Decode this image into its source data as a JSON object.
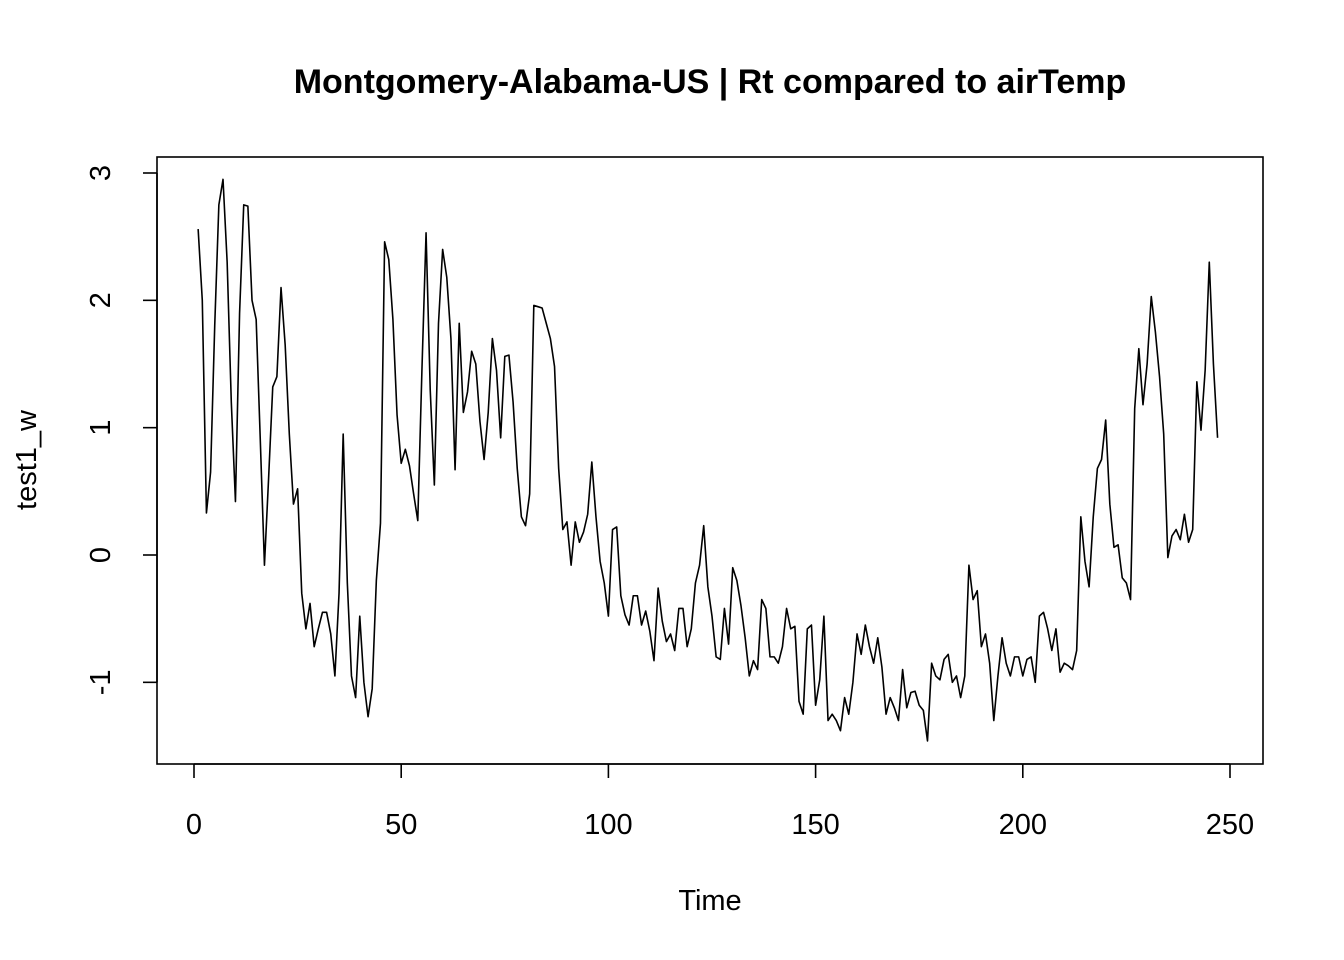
{
  "chart_data": {
    "type": "line",
    "title": "Montgomery-Alabama-US | Rt compared to airTemp",
    "xlabel": "Time",
    "ylabel": "test1_w",
    "xlim": [
      0,
      250
    ],
    "ylim": [
      -1.6,
      3.1
    ],
    "x_ticks": [
      0,
      50,
      100,
      150,
      200,
      250
    ],
    "y_ticks": [
      -1,
      0,
      1,
      2,
      3
    ],
    "grid": false,
    "legend": "none",
    "line_color": "#000000",
    "series": [
      {
        "x_start": 1,
        "x_step": 1,
        "values": [
          2.56,
          2.0,
          0.33,
          0.65,
          1.8,
          2.75,
          2.95,
          2.3,
          1.2,
          0.42,
          1.9,
          2.75,
          2.74,
          2.0,
          1.85,
          0.9,
          -0.08,
          0.6,
          1.32,
          1.4,
          2.1,
          1.65,
          0.95,
          0.4,
          0.52,
          -0.3,
          -0.58,
          -0.38,
          -0.72,
          -0.58,
          -0.45,
          -0.45,
          -0.62,
          -0.95,
          -0.3,
          0.95,
          -0.22,
          -0.95,
          -1.12,
          -0.48,
          -1.0,
          -1.27,
          -1.05,
          -0.2,
          0.25,
          2.46,
          2.32,
          1.85,
          1.1,
          0.72,
          0.83,
          0.7,
          0.48,
          0.27,
          1.45,
          2.53,
          1.3,
          0.55,
          1.82,
          2.4,
          2.18,
          1.7,
          0.67,
          1.82,
          1.12,
          1.28,
          1.6,
          1.5,
          1.05,
          0.75,
          1.12,
          1.7,
          1.45,
          0.92,
          1.56,
          1.57,
          1.2,
          0.68,
          0.3,
          0.23,
          0.48,
          1.96,
          1.95,
          1.94,
          1.82,
          1.7,
          1.48,
          0.68,
          0.2,
          0.26,
          -0.08,
          0.26,
          0.1,
          0.18,
          0.32,
          0.73,
          0.3,
          -0.05,
          -0.22,
          -0.48,
          0.2,
          0.22,
          -0.32,
          -0.47,
          -0.55,
          -0.32,
          -0.32,
          -0.55,
          -0.44,
          -0.6,
          -0.83,
          -0.26,
          -0.52,
          -0.68,
          -0.62,
          -0.75,
          -0.42,
          -0.42,
          -0.72,
          -0.58,
          -0.22,
          -0.08,
          0.23,
          -0.25,
          -0.48,
          -0.8,
          -0.82,
          -0.42,
          -0.7,
          -0.1,
          -0.2,
          -0.4,
          -0.65,
          -0.95,
          -0.83,
          -0.9,
          -0.35,
          -0.42,
          -0.8,
          -0.8,
          -0.85,
          -0.72,
          -0.42,
          -0.58,
          -0.56,
          -1.15,
          -1.25,
          -0.58,
          -0.55,
          -1.18,
          -0.98,
          -0.48,
          -1.3,
          -1.25,
          -1.3,
          -1.38,
          -1.12,
          -1.25,
          -1.0,
          -0.62,
          -0.78,
          -0.55,
          -0.72,
          -0.85,
          -0.65,
          -0.88,
          -1.25,
          -1.12,
          -1.2,
          -1.3,
          -0.9,
          -1.2,
          -1.08,
          -1.07,
          -1.18,
          -1.22,
          -1.46,
          -0.85,
          -0.95,
          -0.98,
          -0.82,
          -0.78,
          -1.0,
          -0.95,
          -1.12,
          -0.95,
          -0.08,
          -0.35,
          -0.28,
          -0.72,
          -0.62,
          -0.85,
          -1.3,
          -0.95,
          -0.65,
          -0.85,
          -0.95,
          -0.8,
          -0.8,
          -0.95,
          -0.82,
          -0.8,
          -1.0,
          -0.48,
          -0.45,
          -0.58,
          -0.75,
          -0.58,
          -0.92,
          -0.85,
          -0.87,
          -0.9,
          -0.75,
          0.3,
          -0.05,
          -0.25,
          0.3,
          0.68,
          0.75,
          1.06,
          0.4,
          0.06,
          0.08,
          -0.18,
          -0.22,
          -0.35,
          1.15,
          1.62,
          1.18,
          1.5,
          2.03,
          1.75,
          1.4,
          0.95,
          -0.02,
          0.15,
          0.2,
          0.12,
          0.32,
          0.1,
          0.2,
          1.36,
          0.98,
          1.45,
          2.3,
          1.5,
          0.92
        ]
      }
    ]
  }
}
